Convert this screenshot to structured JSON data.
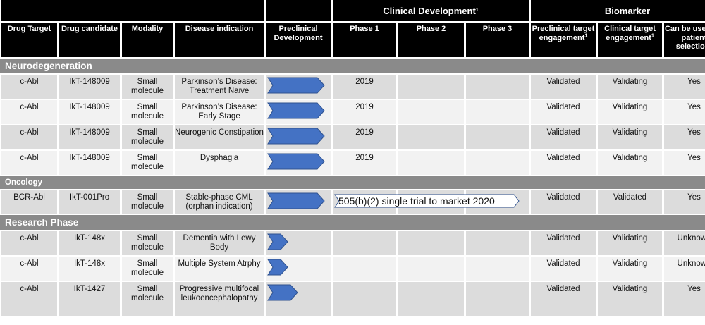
{
  "header": {
    "clinical_development": "Clinical Development",
    "clinical_development_sup": "1",
    "biomarker": "Biomarker",
    "columns": {
      "drug_target": "Drug Target",
      "drug_candidate": "Drug candidate",
      "modality": "Modality",
      "disease_indication": "Disease indication",
      "preclinical_development": "Preclinical Development",
      "phase1": "Phase 1",
      "phase2": "Phase 2",
      "phase3": "Phase 3",
      "preclinical_target_engagement": "Preclinical target engagement",
      "clinical_target_engagement": "Clinical target engagement",
      "patient_selection": "Can be used for patient selection"
    },
    "sup": "1"
  },
  "sections": {
    "neuro": "Neurodegeneration",
    "oncology": "Oncology",
    "research": "Research Phase"
  },
  "rows": {
    "neuro": [
      {
        "target": "c-Abl",
        "candidate": "IkT-148009",
        "modality": "Small molecule",
        "indication": "Parkinson’s Disease: Treatment Naive",
        "phase1": "2019",
        "preclinical_te": "Validated",
        "clinical_te": "Validating",
        "patient_selection": "Yes"
      },
      {
        "target": "c-Abl",
        "candidate": "IkT-148009",
        "modality": "Small molecule",
        "indication": "Parkinson’s Disease: Early Stage",
        "phase1": "2019",
        "preclinical_te": "Validated",
        "clinical_te": "Validating",
        "patient_selection": "Yes"
      },
      {
        "target": "c-Abl",
        "candidate": "IkT-148009",
        "modality": "Small molecule",
        "indication": "Neurogenic Constipation",
        "phase1": "2019",
        "preclinical_te": "Validated",
        "clinical_te": "Validating",
        "patient_selection": "Yes"
      },
      {
        "target": "c-Abl",
        "candidate": "IkT-148009",
        "modality": "Small molecule",
        "indication": "Dysphagia",
        "phase1": "2019",
        "preclinical_te": "Validated",
        "clinical_te": "Validating",
        "patient_selection": "Yes"
      }
    ],
    "oncology": [
      {
        "target": "BCR-Abl",
        "candidate": "IkT-001Pro",
        "modality": "Small molecule",
        "indication": "Stable-phase CML (orphan indication)",
        "banner": "505(b)(2) single trial to market 2020",
        "preclinical_te": "Validated",
        "clinical_te": "Validated",
        "patient_selection": "Yes"
      }
    ],
    "research": [
      {
        "target": "c-Abl",
        "candidate": "IkT-148x",
        "modality": "Small molecule",
        "indication": "Dementia with Lewy Body",
        "preclinical_te": "Validated",
        "clinical_te": "Validating",
        "patient_selection": "Unknown"
      },
      {
        "target": "c-Abl",
        "candidate": "IkT-148x",
        "modality": "Small molecule",
        "indication": "Multiple System Atrphy",
        "preclinical_te": "Validated",
        "clinical_te": "Validating",
        "patient_selection": "Unknown"
      },
      {
        "target": "c-Abl",
        "candidate": "IkT-1427",
        "modality": "Small molecule",
        "indication": "Progressive multifocal leukoencephalopathy",
        "preclinical_te": "Validated",
        "clinical_te": "Validating",
        "patient_selection": "Yes"
      }
    ]
  },
  "colors": {
    "header_bg": "#000000",
    "section_bg": "#8a8a8a",
    "row_grey": "#dcdcdc",
    "row_light": "#f2f2f2",
    "arrow_fill": "#4472c4",
    "arrow_stroke": "#2f528f"
  },
  "icons": {
    "preclinical_arrow": "chevron-arrow-icon",
    "oncology_banner": "banner-arrow-shape"
  }
}
